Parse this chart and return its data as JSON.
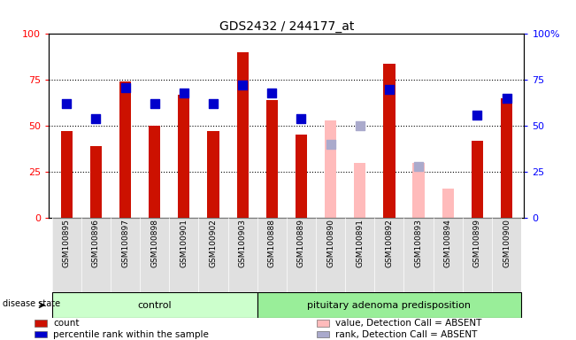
{
  "title": "GDS2432 / 244177_at",
  "samples": [
    "GSM100895",
    "GSM100896",
    "GSM100897",
    "GSM100898",
    "GSM100901",
    "GSM100902",
    "GSM100903",
    "GSM100888",
    "GSM100889",
    "GSM100890",
    "GSM100891",
    "GSM100892",
    "GSM100893",
    "GSM100894",
    "GSM100899",
    "GSM100900"
  ],
  "groups": [
    "control",
    "control",
    "control",
    "control",
    "control",
    "control",
    "control",
    "pituitary adenoma predisposition",
    "pituitary adenoma predisposition",
    "pituitary adenoma predisposition",
    "pituitary adenoma predisposition",
    "pituitary adenoma predisposition",
    "pituitary adenoma predisposition",
    "pituitary adenoma predisposition",
    "pituitary adenoma predisposition",
    "pituitary adenoma predisposition"
  ],
  "red_bars": [
    47,
    39,
    74,
    50,
    67,
    47,
    90,
    64,
    45,
    null,
    null,
    84,
    null,
    null,
    42,
    65
  ],
  "blue_squares": [
    62,
    54,
    71,
    62,
    68,
    62,
    72,
    68,
    54,
    null,
    null,
    70,
    null,
    null,
    56,
    65
  ],
  "pink_bars": [
    null,
    null,
    null,
    null,
    null,
    null,
    null,
    null,
    null,
    53,
    30,
    null,
    30,
    16,
    null,
    null
  ],
  "lavender_squares": [
    null,
    null,
    null,
    null,
    null,
    null,
    null,
    null,
    null,
    40,
    50,
    null,
    28,
    null,
    null,
    null
  ],
  "group_colors": {
    "control": "#ccffcc",
    "pituitary adenoma predisposition": "#99ee99"
  },
  "bar_color_red": "#cc1100",
  "bar_color_pink": "#ffbbbb",
  "square_color_blue": "#0000cc",
  "square_color_lavender": "#aaaacc",
  "ylim": [
    0,
    100
  ],
  "yticks": [
    0,
    25,
    50,
    75,
    100
  ],
  "right_yticklabels": [
    "0",
    "25",
    "50",
    "75",
    "100%"
  ],
  "disease_state_label": "disease state",
  "legend_items": [
    {
      "label": "count",
      "color": "#cc1100"
    },
    {
      "label": "percentile rank within the sample",
      "color": "#0000cc"
    },
    {
      "label": "value, Detection Call = ABSENT",
      "color": "#ffbbbb"
    },
    {
      "label": "rank, Detection Call = ABSENT",
      "color": "#aaaacc"
    }
  ],
  "n_control": 7,
  "n_total": 16
}
